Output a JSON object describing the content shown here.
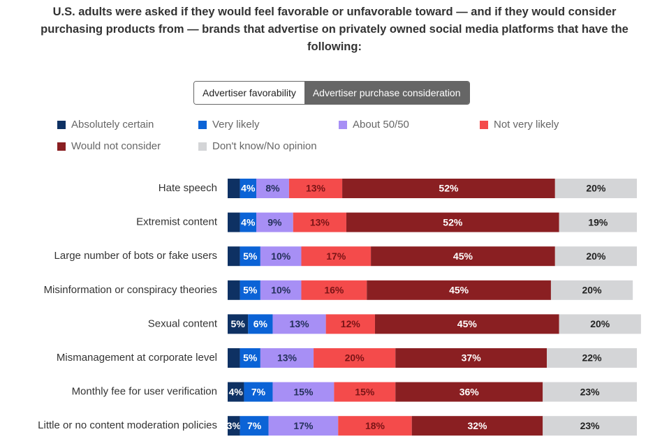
{
  "chart_data": {
    "type": "stacked-bar",
    "title": "U.S. adults were asked if they would feel favorable or unfavorable toward — and if they would consider purchasing products from — brands that advertise on privately owned social media platforms that have the following:",
    "toggle": {
      "options": [
        "Advertiser favorability",
        "Advertiser purchase consideration"
      ],
      "active": 1
    },
    "orientation": "horizontal",
    "xlim": [
      0,
      100
    ],
    "categories": [
      "Hate speech",
      "Extremist content",
      "Large number of bots or fake users",
      "Misinformation or conspiracy theories",
      "Sexual content",
      "Mismanagement at corporate level",
      "Monthly fee for user verification",
      "Little or no content moderation policies"
    ],
    "series": [
      {
        "name": "Absolutely certain",
        "color": "#0e3163",
        "values": [
          3,
          3,
          3,
          3,
          5,
          3,
          4,
          3
        ],
        "value_labels": [
          null,
          null,
          null,
          null,
          "5%",
          null,
          "4%",
          "3%"
        ]
      },
      {
        "name": "Very likely",
        "color": "#0b63d6",
        "values": [
          4,
          4,
          5,
          5,
          6,
          5,
          7,
          7
        ],
        "value_labels": [
          "4%",
          "4%",
          "5%",
          "5%",
          "6%",
          "5%",
          "7%",
          "7%"
        ]
      },
      {
        "name": "About 50/50",
        "color": "#a78ff5",
        "values": [
          8,
          9,
          10,
          10,
          13,
          13,
          15,
          17
        ],
        "value_labels": [
          "8%",
          "9%",
          "10%",
          "10%",
          "13%",
          "13%",
          "15%",
          "17%"
        ]
      },
      {
        "name": "Not very likely",
        "color": "#f44b4b",
        "values": [
          13,
          13,
          17,
          16,
          12,
          20,
          15,
          18
        ],
        "value_labels": [
          "13%",
          "13%",
          "17%",
          "16%",
          "12%",
          "20%",
          "15%",
          "18%"
        ]
      },
      {
        "name": "Would not consider",
        "color": "#8a1f22",
        "values": [
          52,
          52,
          45,
          45,
          45,
          37,
          36,
          32
        ],
        "value_labels": [
          "52%",
          "52%",
          "45%",
          "45%",
          "45%",
          "37%",
          "36%",
          "32%"
        ]
      },
      {
        "name": "Don't know/No opinion",
        "color": "#d4d5d7",
        "values": [
          20,
          19,
          20,
          20,
          20,
          22,
          23,
          23
        ],
        "value_labels": [
          "20%",
          "19%",
          "20%",
          "20%",
          "20%",
          "22%",
          "23%",
          "23%"
        ]
      }
    ]
  }
}
